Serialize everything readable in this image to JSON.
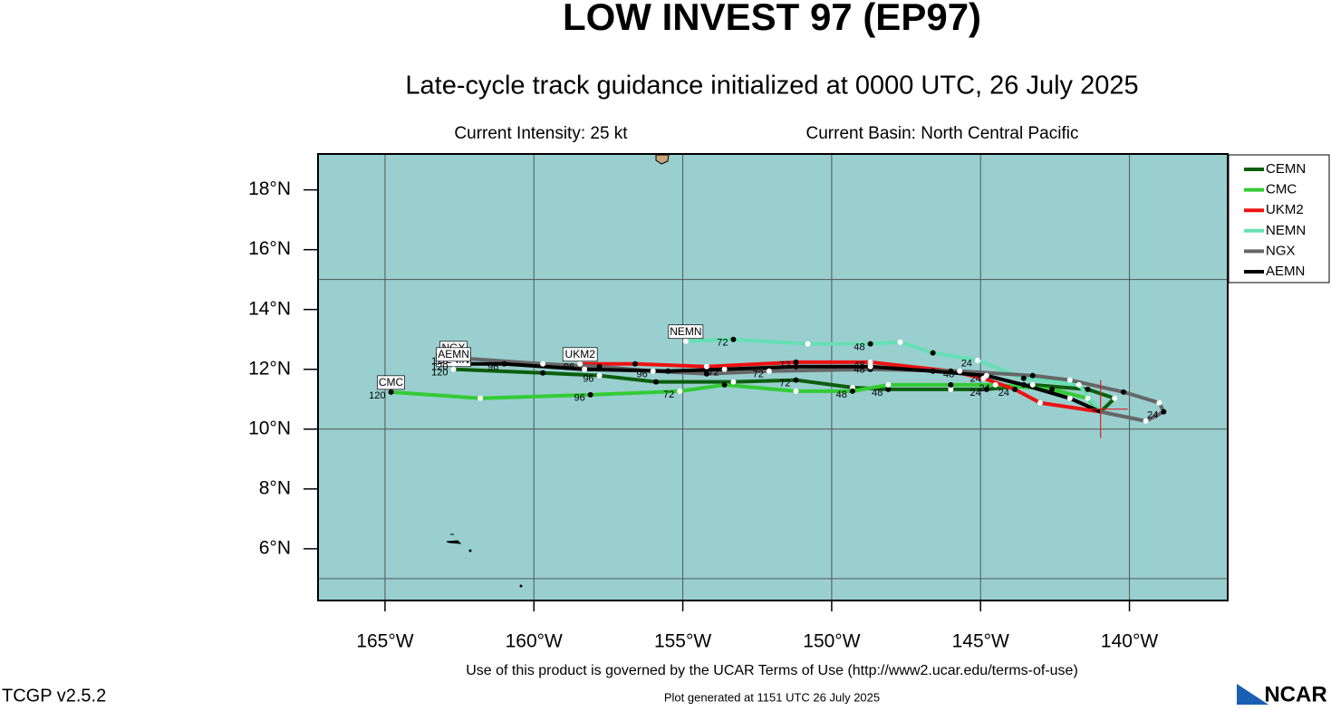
{
  "chart_data": {
    "type": "track",
    "title": "LOW INVEST 97 (EP97)",
    "subtitle": "Late-cycle track guidance initialized at 0000 UTC, 26 July 2025",
    "intensity": "Current Intensity: 25 kt",
    "basin": "Current Basin: North Central Pacific",
    "xlim": [
      -167.25,
      -136.7
    ],
    "ylim": [
      4.27,
      19.2
    ],
    "xticks": [
      {
        "value": -165,
        "label": "165°W"
      },
      {
        "value": -160,
        "label": "160°W"
      },
      {
        "value": -155,
        "label": "155°W"
      },
      {
        "value": -150,
        "label": "150°W"
      },
      {
        "value": -145,
        "label": "145°W"
      },
      {
        "value": -140,
        "label": "140°W"
      }
    ],
    "yticks": [
      {
        "value": 6,
        "label": "6°N"
      },
      {
        "value": 8,
        "label": "8°N"
      },
      {
        "value": 10,
        "label": "10°N"
      },
      {
        "value": 12,
        "label": "12°N"
      },
      {
        "value": 14,
        "label": "14°N"
      },
      {
        "value": 16,
        "label": "16°N"
      },
      {
        "value": 18,
        "label": "18°N"
      }
    ],
    "ygrid": [
      5,
      10,
      15
    ],
    "current_position": {
      "x": -140.97,
      "y": 10.67,
      "color": "#e02020"
    },
    "series": [
      {
        "name": "CEMN",
        "color": "#0b5e0b",
        "x": [
          -140.97,
          -140.5,
          -141.4,
          -143.25,
          -144.8,
          -146.0,
          -148.1,
          -149.3,
          -151.2,
          -153.3,
          -155.9,
          -157.8,
          -159.7,
          -162.7
        ],
        "y": [
          10.58,
          11.03,
          11.33,
          11.48,
          11.33,
          11.33,
          11.33,
          11.39,
          11.64,
          11.58,
          11.58,
          11.79,
          11.88,
          12.0
        ],
        "point_labels": [
          null,
          null,
          null,
          null,
          "24",
          null,
          "48",
          null,
          "72",
          null,
          null,
          "96",
          null,
          "120"
        ]
      },
      {
        "name": "CMC",
        "color": "#33cc33",
        "x": [
          -140.97,
          -141.4,
          -142.6,
          -144.5,
          -146.0,
          -148.1,
          -149.3,
          -151.2,
          -153.6,
          -155.1,
          -158.1,
          -161.8,
          -164.8
        ],
        "y": [
          10.58,
          11.03,
          11.33,
          11.48,
          11.48,
          11.48,
          11.27,
          11.27,
          11.48,
          11.27,
          11.15,
          11.03,
          11.24
        ],
        "point_labels": [
          null,
          null,
          null,
          "24",
          null,
          null,
          "48",
          null,
          null,
          "72",
          "96",
          null,
          "120"
        ]
      },
      {
        "name": "UKM2",
        "color": "#ee1111",
        "x": [
          -140.97,
          -143.0,
          -143.85,
          -144.9,
          -146.0,
          -148.7,
          -151.2,
          -154.2,
          -156.6,
          -158.45
        ],
        "y": [
          10.58,
          10.88,
          11.33,
          11.7,
          11.94,
          12.24,
          12.24,
          12.09,
          12.18,
          12.18
        ],
        "point_labels": [
          null,
          null,
          "24",
          null,
          null,
          "48",
          "72",
          null,
          null,
          "96"
        ]
      },
      {
        "name": "NEMN",
        "color": "#66e0b4",
        "x": [
          -140.97,
          -141.7,
          -143.55,
          -145.1,
          -146.6,
          -147.7,
          -148.7,
          -150.8,
          -153.3,
          -154.9
        ],
        "y": [
          10.58,
          11.48,
          11.7,
          12.3,
          12.55,
          12.91,
          12.85,
          12.85,
          13.0,
          12.94
        ],
        "point_labels": [
          null,
          null,
          null,
          "24",
          null,
          null,
          "48",
          null,
          "72",
          null
        ]
      },
      {
        "name": "NGX",
        "color": "#666666",
        "x": [
          -140.97,
          -139.45,
          -138.85,
          -139.0,
          -140.2,
          -142.0,
          -143.25,
          -145.7,
          -148.7,
          -152.1,
          -154.2,
          -156.0,
          -157.8,
          -159.7,
          -162.7
        ],
        "y": [
          10.58,
          10.27,
          10.58,
          10.88,
          11.24,
          11.64,
          11.79,
          11.94,
          12.0,
          11.94,
          11.85,
          11.94,
          12.09,
          12.18,
          12.39
        ],
        "point_labels": [
          null,
          null,
          "24",
          null,
          null,
          null,
          null,
          "48",
          null,
          "72",
          null,
          "96",
          null,
          null,
          "120"
        ]
      },
      {
        "name": "AEMN",
        "color": "#000000",
        "x": [
          -140.97,
          -142.0,
          -143.55,
          -144.8,
          -146.6,
          -148.7,
          -151.2,
          -153.6,
          -155.5,
          -158.3,
          -161.0,
          -162.7
        ],
        "y": [
          10.58,
          11.03,
          11.48,
          11.79,
          11.94,
          12.09,
          12.09,
          12.0,
          11.94,
          12.0,
          12.18,
          12.18
        ],
        "point_labels": [
          null,
          null,
          null,
          "24",
          null,
          "48",
          null,
          "72",
          null,
          null,
          "96",
          "120"
        ]
      }
    ]
  },
  "footer": {
    "terms": "Use of this product is governed by the UCAR Terms of Use (http://www2.ucar.edu/terms-of-use)",
    "version": "TCGP v2.5.2",
    "generated": "Plot generated at 1151 UTC   26 July 2025",
    "logo": "NCAR"
  }
}
